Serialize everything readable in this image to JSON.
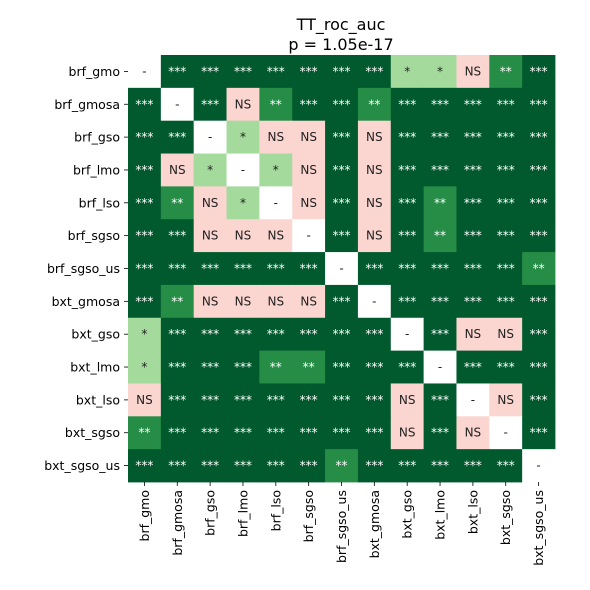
{
  "chart_data": {
    "type": "heatmap",
    "title": "TT_roc_auc",
    "subtitle": "p = 1.05e-17",
    "labels": [
      "brf_gmo",
      "brf_gmosa",
      "brf_gso",
      "brf_lmo",
      "brf_lso",
      "brf_sgso",
      "brf_sgso_us",
      "bxt_gmosa",
      "bxt_gso",
      "bxt_lmo",
      "bxt_lso",
      "bxt_sgso",
      "bxt_sgso_us"
    ],
    "matrix": [
      [
        "-",
        "***",
        "***",
        "***",
        "***",
        "***",
        "***",
        "***",
        "*",
        "*",
        "NS",
        "**",
        "***"
      ],
      [
        "***",
        "-",
        "***",
        "NS",
        "**",
        "***",
        "***",
        "**",
        "***",
        "***",
        "***",
        "***",
        "***"
      ],
      [
        "***",
        "***",
        "-",
        "*",
        "NS",
        "NS",
        "***",
        "NS",
        "***",
        "***",
        "***",
        "***",
        "***"
      ],
      [
        "***",
        "NS",
        "*",
        "-",
        "*",
        "NS",
        "***",
        "NS",
        "***",
        "***",
        "***",
        "***",
        "***"
      ],
      [
        "***",
        "**",
        "NS",
        "*",
        "-",
        "NS",
        "***",
        "NS",
        "***",
        "**",
        "***",
        "***",
        "***"
      ],
      [
        "***",
        "***",
        "NS",
        "NS",
        "NS",
        "-",
        "***",
        "NS",
        "***",
        "**",
        "***",
        "***",
        "***"
      ],
      [
        "***",
        "***",
        "***",
        "***",
        "***",
        "***",
        "-",
        "***",
        "***",
        "***",
        "***",
        "***",
        "**"
      ],
      [
        "***",
        "**",
        "NS",
        "NS",
        "NS",
        "NS",
        "***",
        "-",
        "***",
        "***",
        "***",
        "***",
        "***"
      ],
      [
        "*",
        "***",
        "***",
        "***",
        "***",
        "***",
        "***",
        "***",
        "-",
        "***",
        "NS",
        "NS",
        "***"
      ],
      [
        "*",
        "***",
        "***",
        "***",
        "**",
        "**",
        "***",
        "***",
        "***",
        "-",
        "***",
        "***",
        "***"
      ],
      [
        "NS",
        "***",
        "***",
        "***",
        "***",
        "***",
        "***",
        "***",
        "NS",
        "***",
        "-",
        "NS",
        "***"
      ],
      [
        "**",
        "***",
        "***",
        "***",
        "***",
        "***",
        "***",
        "***",
        "NS",
        "***",
        "NS",
        "-",
        "***"
      ],
      [
        "***",
        "***",
        "***",
        "***",
        "***",
        "***",
        "**",
        "***",
        "***",
        "***",
        "***",
        "***",
        "-"
      ]
    ],
    "legend": "none",
    "grid": false
  },
  "colors": {
    "***": "#005a2e",
    "**": "#268d47",
    "*": "#a4da9c",
    "NS": "#fbd5d0",
    "-": "#ffffff",
    "text_dark": "#222222",
    "text_light": "#ffffff"
  }
}
